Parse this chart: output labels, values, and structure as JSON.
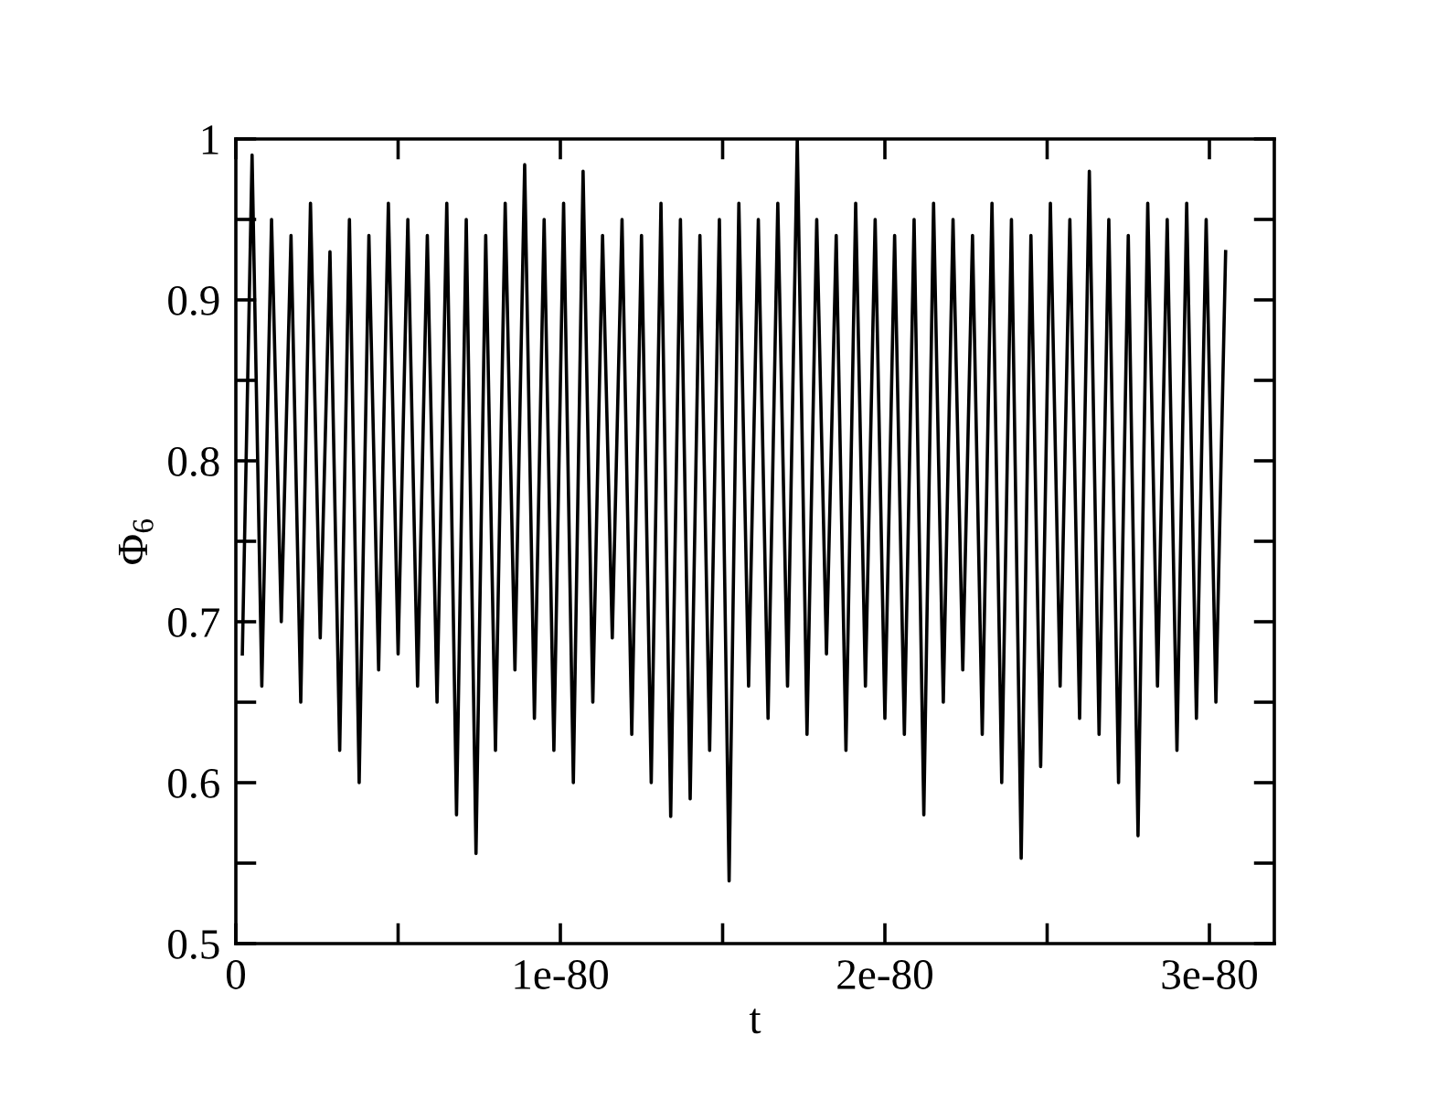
{
  "chart_data": {
    "type": "line",
    "xlabel": "t",
    "ylabel": "Φ$_{6}$",
    "x": [
      2e-82,
      5e-82,
      8e-82,
      1.1e-81,
      1.4e-81,
      1.7e-81,
      2e-81,
      2.3e-81,
      2.6e-81,
      2.9e-81,
      3.2e-81,
      3.5e-81,
      3.8e-81,
      4.1e-81,
      4.4e-81,
      4.7e-81,
      5e-81,
      5.3e-81,
      5.6e-81,
      5.9e-81,
      6.2e-81,
      6.5e-81,
      6.8e-81,
      7.1e-81,
      7.4e-81,
      7.7e-81,
      8e-81,
      8.3e-81,
      8.6e-81,
      8.9e-81,
      9.2e-81,
      9.5e-81,
      9.8e-81,
      1.01e-80,
      1.04e-80,
      1.07e-80,
      1.1e-80,
      1.13e-80,
      1.16e-80,
      1.19e-80,
      1.22e-80,
      1.25e-80,
      1.28e-80,
      1.31e-80,
      1.34e-80,
      1.37e-80,
      1.4e-80,
      1.43e-80,
      1.46e-80,
      1.49e-80,
      1.52e-80,
      1.55e-80,
      1.58e-80,
      1.61e-80,
      1.64e-80,
      1.67e-80,
      1.7e-80,
      1.73e-80,
      1.76e-80,
      1.79e-80,
      1.82e-80,
      1.85e-80,
      1.88e-80,
      1.91e-80,
      1.94e-80,
      1.97e-80,
      2e-80,
      2.03e-80,
      2.06e-80,
      2.09e-80,
      2.12e-80,
      2.15e-80,
      2.18e-80,
      2.21e-80,
      2.24e-80,
      2.27e-80,
      2.3e-80,
      2.33e-80,
      2.36e-80,
      2.39e-80,
      2.42e-80,
      2.45e-80,
      2.48e-80,
      2.51e-80,
      2.54e-80,
      2.57e-80,
      2.6e-80,
      2.63e-80,
      2.66e-80,
      2.69e-80,
      2.72e-80,
      2.75e-80,
      2.78e-80,
      2.81e-80,
      2.84e-80,
      2.87e-80,
      2.9e-80,
      2.93e-80,
      2.96e-80,
      2.99e-80,
      3.02e-80,
      3.05e-80
    ],
    "series": [
      {
        "color": "#000000",
        "values": [
          0.68,
          0.99,
          0.66,
          0.95,
          0.7,
          0.94,
          0.65,
          0.96,
          0.69,
          0.93,
          0.62,
          0.95,
          0.6,
          0.94,
          0.67,
          0.96,
          0.68,
          0.95,
          0.66,
          0.94,
          0.65,
          0.96,
          0.58,
          0.95,
          0.556,
          0.94,
          0.62,
          0.96,
          0.67,
          0.984,
          0.64,
          0.95,
          0.62,
          0.96,
          0.6,
          0.98,
          0.65,
          0.94,
          0.69,
          0.95,
          0.63,
          0.94,
          0.6,
          0.96,
          0.579,
          0.95,
          0.59,
          0.94,
          0.62,
          0.95,
          0.539,
          0.96,
          0.66,
          0.95,
          0.64,
          0.96,
          0.66,
          1.0,
          0.63,
          0.95,
          0.68,
          0.94,
          0.62,
          0.96,
          0.66,
          0.95,
          0.64,
          0.94,
          0.63,
          0.95,
          0.58,
          0.96,
          0.65,
          0.95,
          0.67,
          0.94,
          0.63,
          0.96,
          0.6,
          0.95,
          0.553,
          0.94,
          0.61,
          0.96,
          0.66,
          0.95,
          0.64,
          0.98,
          0.63,
          0.95,
          0.6,
          0.94,
          0.567,
          0.96,
          0.66,
          0.95,
          0.62,
          0.96,
          0.64,
          0.95,
          0.65,
          0.93
        ]
      }
    ],
    "xlim": [
      0,
      3.2e-80
    ],
    "ylim": [
      0.5,
      1
    ],
    "xticks": [
      0,
      {
        "value": 5e-81,
        "label": null
      },
      {
        "value": 1e-80,
        "label": "1e-80"
      },
      {
        "value": 1.5e-80,
        "label": null
      },
      {
        "value": 2e-80,
        "label": "2e-80"
      },
      {
        "value": 2.5e-80,
        "label": null
      },
      {
        "value": 3e-80,
        "label": "3e-80"
      }
    ],
    "yticks": [
      0.5,
      {
        "value": 0.55,
        "label": null
      },
      0.6,
      {
        "value": 0.65,
        "label": null
      },
      0.7,
      {
        "value": 0.75,
        "label": null
      },
      0.8,
      {
        "value": 0.85,
        "label": null
      },
      0.9,
      {
        "value": 0.95,
        "label": null
      },
      1
    ],
    "grid": false,
    "marker": "none",
    "line_style": "solid"
  }
}
